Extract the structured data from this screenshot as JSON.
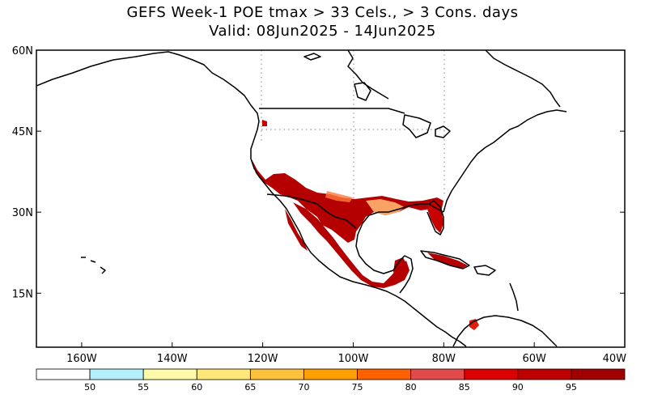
{
  "title": {
    "line1": "GEFS Week-1 POE tmax > 33 Cels., > 3 Cons. days",
    "line2": "Valid: 08Jun2025 - 14Jun2025"
  },
  "map": {
    "lon_range": [
      -170,
      -40
    ],
    "lat_range": [
      5,
      60
    ],
    "lat_ticks": [
      {
        "value": 60,
        "label": "60N"
      },
      {
        "value": 45,
        "label": "45N"
      },
      {
        "value": 30,
        "label": "30N"
      },
      {
        "value": 15,
        "label": "15N"
      }
    ],
    "lon_ticks": [
      {
        "value": -160,
        "label": "160W"
      },
      {
        "value": -140,
        "label": "140W"
      },
      {
        "value": -120,
        "label": "120W"
      },
      {
        "value": -100,
        "label": "100W"
      },
      {
        "value": -80,
        "label": "80W"
      },
      {
        "value": -60,
        "label": "60W"
      },
      {
        "value": -40,
        "label": "40W"
      }
    ]
  },
  "colorbar": {
    "colors": [
      "#ffffff",
      "#b4f0fa",
      "#fffaaa",
      "#ffe878",
      "#ffc03c",
      "#ffa000",
      "#ff6000",
      "#e14b4b",
      "#dc0000",
      "#be0000",
      "#a00000"
    ],
    "labels": [
      "50",
      "55",
      "60",
      "65",
      "70",
      "75",
      "80",
      "85",
      "90",
      "95"
    ]
  },
  "colors": {
    "land_outline": "#000000",
    "grid_dots": "#999999",
    "hot_dark": "#b40000",
    "hot_mid": "#dc1e0a",
    "hot_light": "#ffb46e"
  }
}
